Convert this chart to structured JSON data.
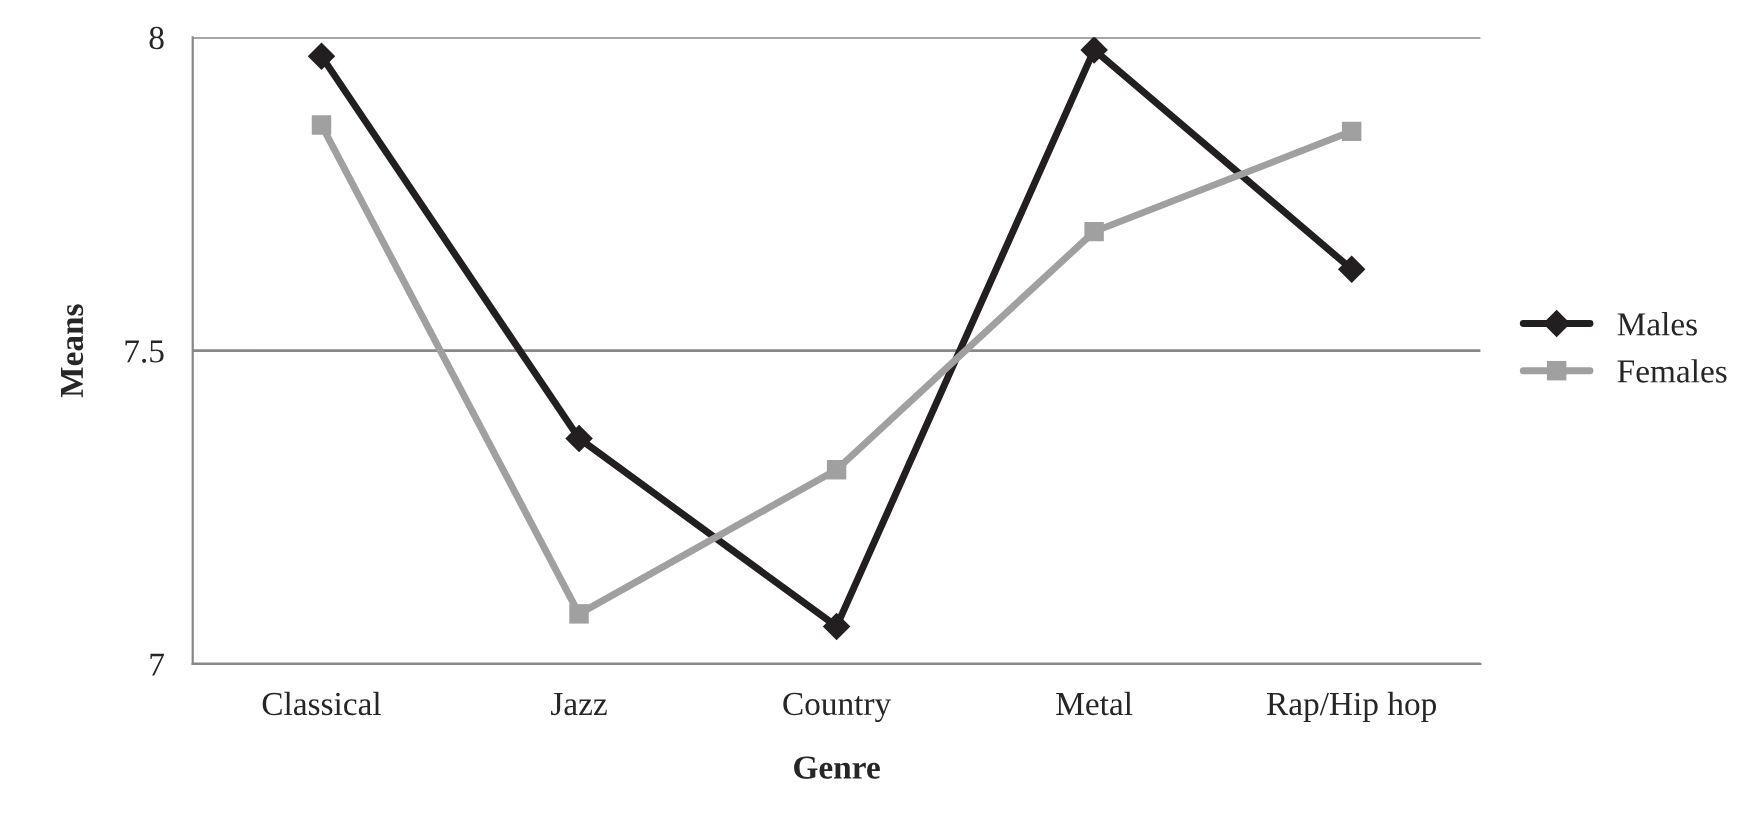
{
  "chart_data": {
    "type": "line",
    "xlabel": "Genre",
    "ylabel": "Means",
    "categories": [
      "Classical",
      "Jazz",
      "Country",
      "Metal",
      "Rap/Hip hop"
    ],
    "series": [
      {
        "name": "Males",
        "color": "#231f20",
        "marker": "diamond",
        "values": [
          7.97,
          7.36,
          7.06,
          7.98,
          7.63
        ]
      },
      {
        "name": "Females",
        "color": "#a0a0a0",
        "marker": "square",
        "values": [
          7.86,
          7.08,
          7.31,
          7.69,
          7.85
        ]
      }
    ],
    "ylim": [
      7,
      8
    ],
    "yticks": [
      7,
      7.5,
      8
    ],
    "grid": "y",
    "legend": "right"
  }
}
